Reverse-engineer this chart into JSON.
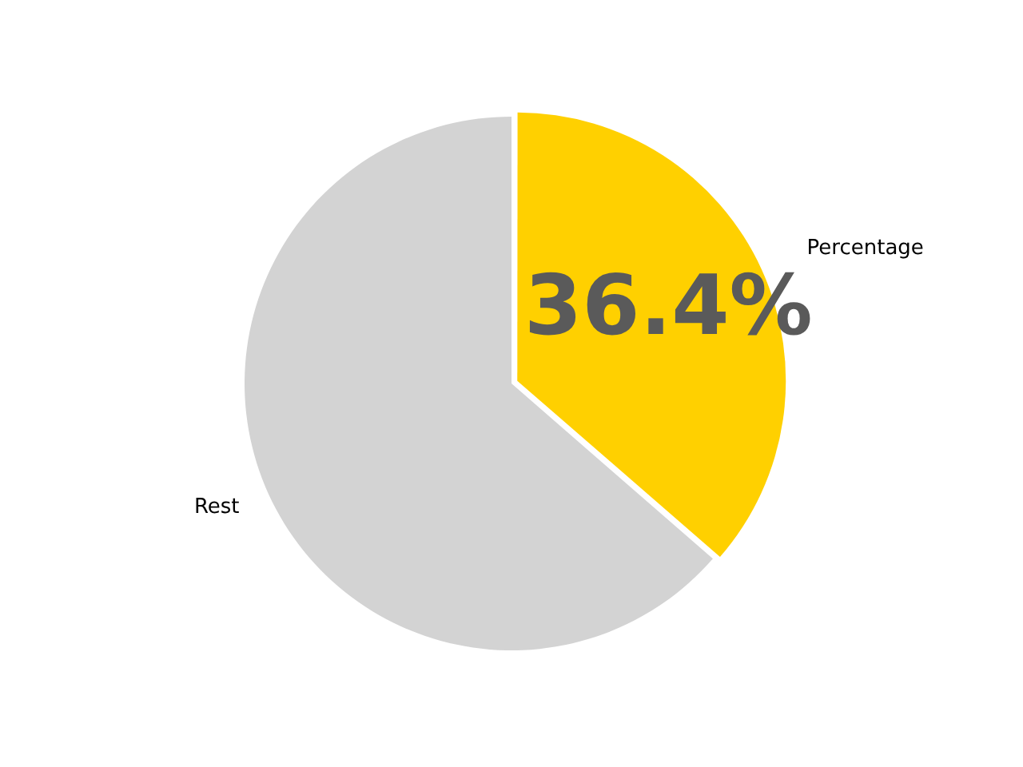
{
  "chart_data": {
    "type": "pie",
    "categories": [
      "Percentage",
      "Rest"
    ],
    "values": [
      36.4,
      63.6
    ],
    "colors": [
      "#ffd000",
      "#d3d3d3"
    ],
    "value_labels": [
      "36.4%",
      null
    ]
  }
}
